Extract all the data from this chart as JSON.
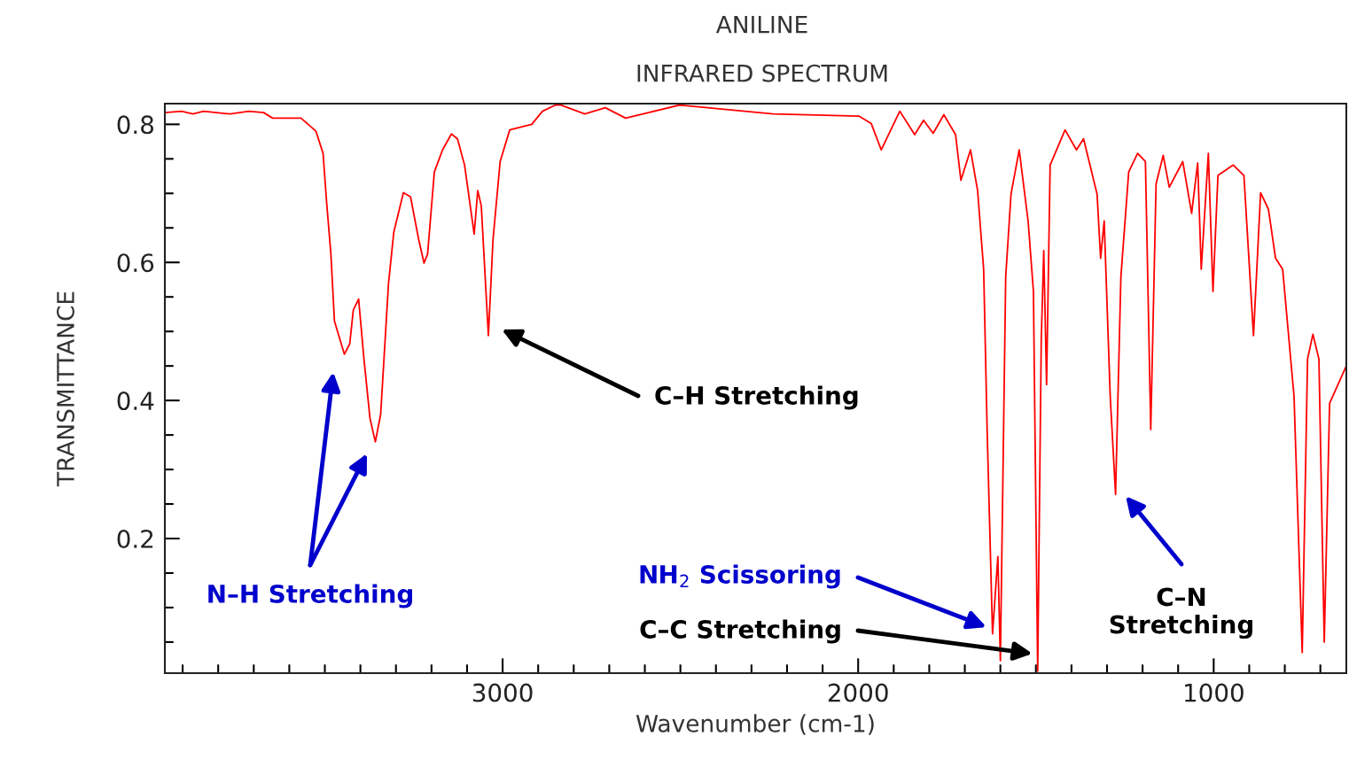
{
  "chart_data": {
    "type": "line",
    "title": "ANILINE",
    "subtitle": "INFRARED SPECTRUM",
    "xlabel": "Wavenumber (cm-1)",
    "ylabel": "TRANSMITTANCE",
    "xlim": [
      3950,
      627
    ],
    "ylim": [
      0.005,
      0.83
    ],
    "xticks": [
      {
        "value": 3900,
        "label": null
      },
      {
        "value": 3800,
        "label": null
      },
      {
        "value": 3700,
        "label": null
      },
      {
        "value": 3600,
        "label": null
      },
      {
        "value": 3500,
        "label": null
      },
      {
        "value": 3400,
        "label": null
      },
      {
        "value": 3300,
        "label": null
      },
      {
        "value": 3200,
        "label": null
      },
      {
        "value": 3100,
        "label": null
      },
      3000,
      {
        "value": 2900,
        "label": null
      },
      {
        "value": 2800,
        "label": null
      },
      {
        "value": 2700,
        "label": null
      },
      {
        "value": 2600,
        "label": null
      },
      {
        "value": 2500,
        "label": null
      },
      {
        "value": 2400,
        "label": null
      },
      {
        "value": 2300,
        "label": null
      },
      {
        "value": 2200,
        "label": null
      },
      {
        "value": 2100,
        "label": null
      },
      2000,
      {
        "value": 1900,
        "label": null
      },
      {
        "value": 1800,
        "label": null
      },
      {
        "value": 1700,
        "label": null
      },
      {
        "value": 1600,
        "label": null
      },
      {
        "value": 1500,
        "label": null
      },
      {
        "value": 1400,
        "label": null
      },
      {
        "value": 1300,
        "label": null
      },
      {
        "value": 1200,
        "label": null
      },
      {
        "value": 1100,
        "label": null
      },
      1000,
      {
        "value": 900,
        "label": null
      },
      {
        "value": 800,
        "label": null
      },
      {
        "value": 700,
        "label": null
      }
    ],
    "yticks": [
      {
        "value": 0.05,
        "label": null
      },
      {
        "value": 0.1,
        "label": null
      },
      {
        "value": 0.15,
        "label": null
      },
      0.2,
      {
        "value": 0.25,
        "label": null
      },
      {
        "value": 0.3,
        "label": null
      },
      {
        "value": 0.35,
        "label": null
      },
      0.4,
      {
        "value": 0.45,
        "label": null
      },
      {
        "value": 0.5,
        "label": null
      },
      {
        "value": 0.55,
        "label": null
      },
      0.6,
      {
        "value": 0.65,
        "label": null
      },
      {
        "value": 0.7,
        "label": null
      },
      {
        "value": 0.75,
        "label": null
      },
      0.8
    ],
    "grid": false,
    "marker": "none",
    "line_style": "solid",
    "series": [
      {
        "color": "#ff0000",
        "x": [
          3950,
          3903,
          3871,
          3841,
          3766,
          3714,
          3672,
          3647,
          3567,
          3525,
          3505,
          3495,
          3483,
          3473,
          3445,
          3430,
          3420,
          3405,
          3390,
          3373,
          3358,
          3343,
          3321,
          3306,
          3279,
          3259,
          3236,
          3221,
          3211,
          3192,
          3169,
          3144,
          3127,
          3107,
          3080,
          3070,
          3060,
          3040,
          3027,
          3007,
          2980,
          2918,
          2888,
          2851,
          2836,
          2769,
          2711,
          2654,
          2502,
          2239,
          1998,
          1963,
          1935,
          1883,
          1841,
          1816,
          1789,
          1759,
          1726,
          1711,
          1684,
          1664,
          1647,
          1637,
          1622,
          1607,
          1600,
          1585,
          1570,
          1547,
          1522,
          1507,
          1495,
          1485,
          1478,
          1470,
          1460,
          1418,
          1386,
          1366,
          1328,
          1318,
          1308,
          1291,
          1276,
          1261,
          1239,
          1214,
          1192,
          1177,
          1162,
          1142,
          1125,
          1087,
          1062,
          1045,
          1035,
          1015,
          1002,
          988,
          945,
          915,
          888,
          868,
          846,
          826,
          806,
          774,
          751,
          736,
          721,
          704,
          689,
          674,
          627
        ],
        "values": [
          0.817,
          0.819,
          0.815,
          0.819,
          0.815,
          0.819,
          0.817,
          0.809,
          0.809,
          0.79,
          0.758,
          0.687,
          0.612,
          0.515,
          0.467,
          0.482,
          0.531,
          0.547,
          0.46,
          0.374,
          0.34,
          0.38,
          0.569,
          0.644,
          0.701,
          0.695,
          0.633,
          0.599,
          0.612,
          0.731,
          0.763,
          0.786,
          0.779,
          0.741,
          0.641,
          0.704,
          0.682,
          0.494,
          0.633,
          0.746,
          0.792,
          0.8,
          0.819,
          0.828,
          0.828,
          0.815,
          0.824,
          0.809,
          0.828,
          0.815,
          0.812,
          0.801,
          0.763,
          0.819,
          0.785,
          0.806,
          0.787,
          0.814,
          0.785,
          0.719,
          0.763,
          0.704,
          0.59,
          0.353,
          0.062,
          0.174,
          0.023,
          0.579,
          0.699,
          0.763,
          0.66,
          0.558,
          0.008,
          0.487,
          0.617,
          0.423,
          0.741,
          0.792,
          0.763,
          0.779,
          0.699,
          0.606,
          0.66,
          0.406,
          0.264,
          0.579,
          0.731,
          0.758,
          0.746,
          0.358,
          0.714,
          0.755,
          0.709,
          0.746,
          0.671,
          0.744,
          0.59,
          0.758,
          0.558,
          0.726,
          0.741,
          0.726,
          0.494,
          0.701,
          0.677,
          0.606,
          0.59,
          0.406,
          0.035,
          0.46,
          0.496,
          0.46,
          0.05,
          0.396,
          0.45
        ]
      }
    ],
    "annotations": [
      "N–H Stretching",
      "C–H Stretching",
      "NH$_{2}$ Scissoring",
      "C–C Stretching",
      "C–N\nStretching"
    ]
  }
}
